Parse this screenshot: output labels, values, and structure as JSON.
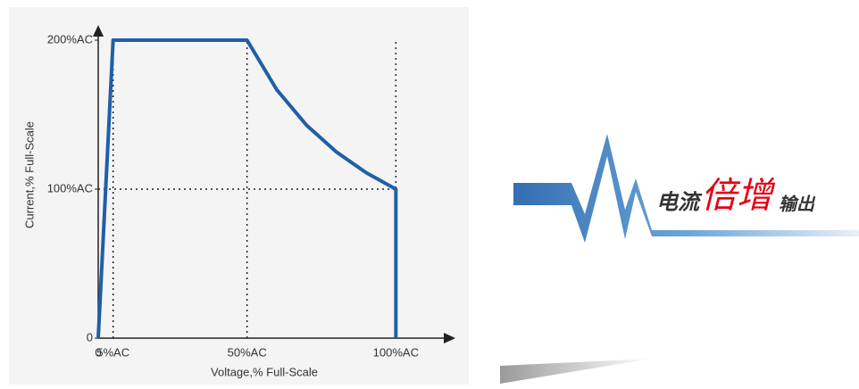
{
  "chart_data": {
    "type": "line",
    "xlabel": "Voltage,% Full-Scale",
    "ylabel": "Current,% Full-Scale",
    "x": [
      0,
      5,
      50,
      60,
      70,
      80,
      90,
      100,
      100
    ],
    "values": [
      0,
      200,
      200,
      166.7,
      142.9,
      125,
      111.1,
      100,
      0
    ],
    "color": "#1f5fa6",
    "xlim": [
      0,
      120
    ],
    "ylim": [
      0,
      209
    ],
    "xticks": [
      0,
      {
        "value": 5,
        "label": "5%AC"
      },
      {
        "value": 50,
        "label": "50%AC"
      },
      {
        "value": 100,
        "label": "100%AC"
      }
    ],
    "yticks": [
      0,
      {
        "value": 100,
        "label": "100%AC"
      },
      {
        "value": 200,
        "label": "200%AC"
      }
    ],
    "grid": "dotted"
  },
  "banner": [
    "电流",
    "倍增",
    "输出"
  ]
}
